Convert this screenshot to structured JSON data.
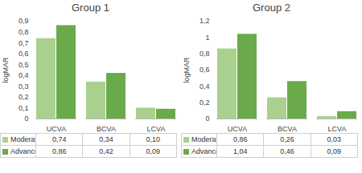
{
  "chart_data": [
    {
      "type": "bar",
      "title": "Group 1",
      "ylabel": "logMAR",
      "categories": [
        "UCVA",
        "BCVA",
        "LCVA"
      ],
      "series": [
        {
          "name": "Moderate",
          "color": "#a9d08e",
          "values": [
            0.74,
            0.34,
            0.1
          ],
          "value_labels": [
            "0,74",
            "0,34",
            "0,10"
          ]
        },
        {
          "name": "Advanced",
          "color": "#6aaa4a",
          "values": [
            0.86,
            0.42,
            0.09
          ],
          "value_labels": [
            "0,86",
            "0,42",
            "0,09"
          ]
        }
      ],
      "ylim": [
        0,
        0.9
      ],
      "yticks": [
        0,
        {
          "value": 0.1,
          "label": "0,1"
        },
        {
          "value": 0.2,
          "label": "0,2"
        },
        {
          "value": 0.3,
          "label": "0,3"
        },
        {
          "value": 0.4,
          "label": "0,4"
        },
        {
          "value": 0.5,
          "label": "0,5"
        },
        {
          "value": 0.6,
          "label": "0,6"
        },
        {
          "value": 0.7,
          "label": "0,7"
        },
        {
          "value": 0.8,
          "label": "0,8"
        },
        {
          "value": 0.9,
          "label": "0,9"
        }
      ],
      "grid": false,
      "legend": "bottom"
    },
    {
      "type": "bar",
      "title": "Group 2",
      "ylabel": "logMAR",
      "categories": [
        "UCVA",
        "BCVA",
        "LCVA"
      ],
      "series": [
        {
          "name": "Moderate",
          "color": "#a9d08e",
          "values": [
            0.86,
            0.26,
            0.03
          ],
          "value_labels": [
            "0,86",
            "0,26",
            "0,03"
          ]
        },
        {
          "name": "Advanced",
          "color": "#6aaa4a",
          "values": [
            1.04,
            0.46,
            0.09
          ],
          "value_labels": [
            "1,04",
            "0,46",
            "0,09"
          ]
        }
      ],
      "ylim": [
        0,
        1.2
      ],
      "yticks": [
        0,
        {
          "value": 0.2,
          "label": "0,2"
        },
        {
          "value": 0.4,
          "label": "0,4"
        },
        {
          "value": 0.6,
          "label": "0,6"
        },
        {
          "value": 0.8,
          "label": "0,8"
        },
        1,
        {
          "value": 1.2,
          "label": "1,2"
        }
      ],
      "grid": false,
      "legend": "bottom"
    }
  ]
}
